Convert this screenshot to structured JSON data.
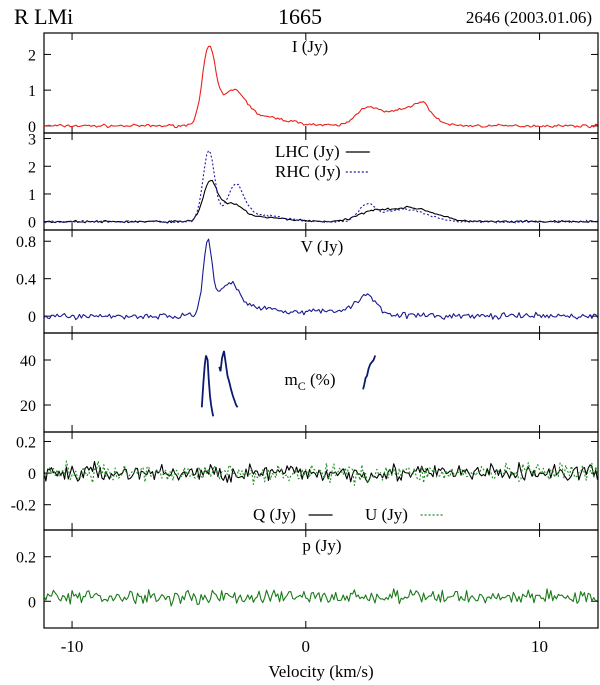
{
  "header": {
    "left": "R LMi",
    "center": "1665",
    "right": "2646 (2003.01.06)"
  },
  "xaxis": {
    "label": "Velocity (km/s)",
    "range": [
      -11.2,
      12.5
    ],
    "ticks": [
      -10,
      0,
      10
    ]
  },
  "chart_data": [
    {
      "type": "line",
      "panel": "I",
      "ylim": [
        -0.2,
        2.6
      ],
      "yticks": [
        0,
        1,
        2
      ],
      "annotation": "I (Jy)",
      "series": [
        {
          "name": "I (Jy)",
          "color": "#e8211b",
          "profile": {
            "base": 0.0,
            "noise": 0.05,
            "components": [
              [
                -4.15,
                2.1,
                0.28
              ],
              [
                -3.1,
                0.85,
                0.5
              ],
              [
                -2.0,
                0.25,
                1.2
              ],
              [
                2.6,
                0.45,
                0.45
              ],
              [
                4.2,
                0.45,
                0.9
              ],
              [
                5.0,
                0.35,
                0.35
              ]
            ]
          }
        }
      ]
    },
    {
      "type": "line",
      "panel": "LHC/RHC",
      "ylim": [
        -0.3,
        3.2
      ],
      "yticks": [
        0,
        1,
        2,
        3
      ],
      "series": [
        {
          "name": "LHC (Jy)",
          "color": "#000000",
          "dash": "",
          "profile": {
            "base": 0.0,
            "noise": 0.05,
            "components": [
              [
                -4.1,
                1.35,
                0.3
              ],
              [
                -3.2,
                0.55,
                0.5
              ],
              [
                -2.0,
                0.15,
                1.2
              ],
              [
                2.8,
                0.3,
                0.6
              ],
              [
                4.5,
                0.5,
                1.0
              ]
            ]
          }
        },
        {
          "name": "RHC (Jy)",
          "color": "#1a1aa8",
          "dash": "2,2",
          "profile": {
            "base": 0.0,
            "noise": 0.05,
            "components": [
              [
                -4.15,
                2.55,
                0.25
              ],
              [
                -3.0,
                1.2,
                0.35
              ],
              [
                -2.0,
                0.25,
                1.0
              ],
              [
                2.6,
                0.55,
                0.35
              ],
              [
                4.2,
                0.45,
                0.9
              ]
            ]
          }
        }
      ]
    },
    {
      "type": "line",
      "panel": "V",
      "ylim": [
        -0.18,
        0.92
      ],
      "yticks": [
        0,
        0.4,
        0.8
      ],
      "annotation": "V (Jy)",
      "series": [
        {
          "name": "V (Jy)",
          "color": "#1a1a8c",
          "profile": {
            "base": 0.0,
            "noise": 0.04,
            "components": [
              [
                -4.2,
                0.75,
                0.2
              ],
              [
                -3.3,
                0.32,
                0.45
              ],
              [
                -2.0,
                0.08,
                1.0
              ],
              [
                2.6,
                0.18,
                0.4
              ],
              [
                1.5,
                0.06,
                1.5
              ]
            ]
          }
        }
      ]
    },
    {
      "type": "line",
      "panel": "mC",
      "ylim": [
        8,
        52
      ],
      "yticks": [
        20,
        40
      ],
      "annotation": "m",
      "annotation_sub": "C",
      "annotation_tail": " (%)",
      "series": [
        {
          "name": "mC",
          "color": "#0c1a6e",
          "segments": [
            {
              "x": [
                -4.45,
                -4.38,
                -4.32,
                -4.27,
                -4.2,
                -4.15,
                -4.1,
                -4.05,
                -4.0,
                -3.96
              ],
              "y": [
                19,
                30,
                38,
                42,
                40,
                31,
                24,
                20,
                17,
                15
              ]
            },
            {
              "x": [
                -3.7,
                -3.65,
                -3.58,
                -3.5,
                -3.42,
                -3.35,
                -3.27,
                -3.2,
                -3.12,
                -3.05,
                -2.98,
                -2.92
              ],
              "y": [
                37,
                35,
                41,
                44,
                38,
                33,
                30,
                27,
                24,
                22,
                20,
                19
              ]
            },
            {
              "x": [
                2.45,
                2.5,
                2.56,
                2.62,
                2.68,
                2.75,
                2.82,
                2.9,
                2.97
              ],
              "y": [
                27,
                29,
                32,
                33,
                36,
                38,
                39,
                40,
                42
              ]
            }
          ]
        }
      ]
    },
    {
      "type": "line",
      "panel": "Q/U",
      "ylim": [
        -0.36,
        0.26
      ],
      "yticks": [
        -0.2,
        0,
        0.2
      ],
      "series": [
        {
          "name": "Q (Jy)",
          "color": "#000000",
          "dash": "",
          "profile": {
            "base": 0.0,
            "noise": 0.07,
            "components": []
          }
        },
        {
          "name": "U (Jy)",
          "color": "#1f8c1f",
          "dash": "2,2",
          "profile": {
            "base": 0.0,
            "noise": 0.07,
            "components": []
          }
        }
      ]
    },
    {
      "type": "line",
      "panel": "p",
      "ylim": [
        -0.12,
        0.32
      ],
      "yticks": [
        0,
        0.2
      ],
      "annotation": "p (Jy)",
      "series": [
        {
          "name": "p (Jy)",
          "color": "#1a7a1a",
          "profile": {
            "base": 0.02,
            "noise": 0.04,
            "components": []
          }
        }
      ]
    }
  ]
}
